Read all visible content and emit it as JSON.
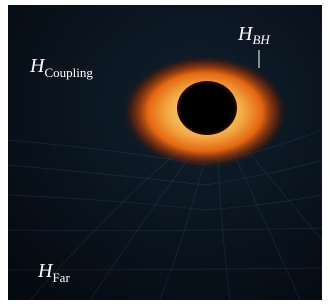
{
  "labels": [
    {
      "symbol": "H",
      "subscript": "BH"
    },
    {
      "symbol": "H",
      "subscript": "Coupling"
    },
    {
      "symbol": "H",
      "subscript": "Far"
    }
  ]
}
